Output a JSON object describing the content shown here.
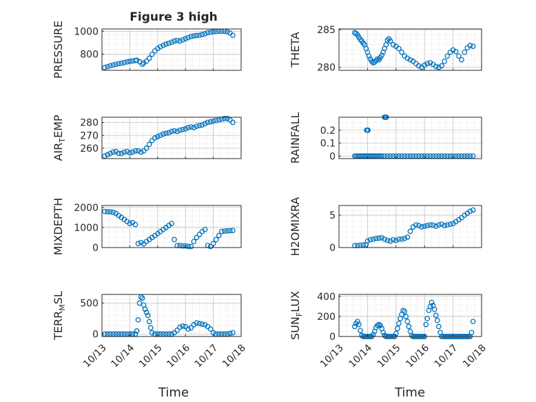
{
  "figure": {
    "title": "Figure 3 high",
    "xlabel_left": "Time",
    "xlabel_right": "Time",
    "x_tick_labels": [
      "10/13",
      "10/14",
      "10/15",
      "10/16",
      "10/17",
      "10/18"
    ],
    "marker_color": "#0072BD"
  },
  "chart_data": [
    {
      "type": "scatter",
      "title": "Figure 3 high",
      "ylabel": "PRESSURE",
      "xlim": [
        13,
        18
      ],
      "ylim": [
        660,
        1020
      ],
      "yticks": [
        800,
        1000
      ],
      "ytick_labels": [
        "800",
        "1000"
      ],
      "x": [
        13.1,
        13.2,
        13.3,
        13.4,
        13.5,
        13.6,
        13.7,
        13.8,
        13.9,
        14.0,
        14.1,
        14.2,
        14.25,
        14.35,
        14.45,
        14.5,
        14.6,
        14.7,
        14.8,
        14.9,
        15.0,
        15.1,
        15.2,
        15.3,
        15.4,
        15.5,
        15.6,
        15.7,
        15.8,
        15.9,
        16.0,
        16.1,
        16.2,
        16.3,
        16.4,
        16.5,
        16.6,
        16.7,
        16.8,
        16.9,
        17.0,
        17.1,
        17.2,
        17.3,
        17.4,
        17.5,
        17.6,
        17.7
      ],
      "y": [
        685,
        692,
        700,
        706,
        712,
        718,
        722,
        728,
        733,
        738,
        742,
        745,
        748,
        735,
        712,
        725,
        740,
        765,
        800,
        830,
        850,
        865,
        878,
        888,
        895,
        905,
        915,
        920,
        915,
        925,
        935,
        945,
        955,
        960,
        963,
        965,
        972,
        978,
        988,
        992,
        996,
        998,
        1000,
        1000,
        1000,
        995,
        985,
        965
      ]
    },
    {
      "type": "scatter",
      "ylabel": "THETA",
      "xlim": [
        13,
        18
      ],
      "ylim": [
        279.6,
        285.1
      ],
      "yticks": [
        280,
        285
      ],
      "ytick_labels": [
        "280",
        "285"
      ],
      "x": [
        13.55,
        13.6,
        13.65,
        13.7,
        13.75,
        13.8,
        13.85,
        13.9,
        13.95,
        14.0,
        14.05,
        14.1,
        14.15,
        14.2,
        14.25,
        14.3,
        14.35,
        14.4,
        14.45,
        14.5,
        14.55,
        14.6,
        14.65,
        14.7,
        14.75,
        14.8,
        14.9,
        15.0,
        15.1,
        15.2,
        15.3,
        15.4,
        15.5,
        15.6,
        15.7,
        15.8,
        15.9,
        16.0,
        16.1,
        16.2,
        16.3,
        16.4,
        16.5,
        16.6,
        16.7,
        16.8,
        16.9,
        17.0,
        17.1,
        17.2,
        17.3,
        17.4,
        17.5,
        17.6,
        17.7
      ],
      "y": [
        284.6,
        284.5,
        284.3,
        284.0,
        283.7,
        283.5,
        283.2,
        283.0,
        282.5,
        282.0,
        281.5,
        281.1,
        280.8,
        280.6,
        280.7,
        280.9,
        281.1,
        281.0,
        281.3,
        281.6,
        282.0,
        282.5,
        283.0,
        283.6,
        283.8,
        283.5,
        283.0,
        282.8,
        282.5,
        282.0,
        281.5,
        281.2,
        281.0,
        280.8,
        280.5,
        280.2,
        280.0,
        280.3,
        280.5,
        280.6,
        280.4,
        280.1,
        280.0,
        280.2,
        280.8,
        281.5,
        282.0,
        282.3,
        282.1,
        281.5,
        281.0,
        282.0,
        282.6,
        282.9,
        282.8
      ]
    },
    {
      "type": "scatter",
      "ylabel": "AIR_TEMP",
      "xlim": [
        13,
        18
      ],
      "ylim": [
        252,
        284
      ],
      "yticks": [
        260,
        270,
        280
      ],
      "ytick_labels": [
        "260",
        "270",
        "280"
      ],
      "x": [
        13.1,
        13.2,
        13.3,
        13.4,
        13.5,
        13.6,
        13.7,
        13.8,
        13.9,
        14.0,
        14.1,
        14.2,
        14.3,
        14.4,
        14.5,
        14.6,
        14.7,
        14.8,
        14.9,
        15.0,
        15.1,
        15.2,
        15.3,
        15.4,
        15.5,
        15.6,
        15.7,
        15.8,
        15.9,
        16.0,
        16.1,
        16.2,
        16.3,
        16.4,
        16.5,
        16.6,
        16.7,
        16.8,
        16.9,
        17.0,
        17.1,
        17.2,
        17.3,
        17.4,
        17.5,
        17.6,
        17.7
      ],
      "y": [
        254,
        255,
        256,
        257,
        257.5,
        256,
        256,
        257,
        257.5,
        256.5,
        257,
        258,
        258,
        257,
        258,
        260,
        263,
        266,
        268,
        269,
        270,
        271,
        271.5,
        272,
        273,
        273.5,
        273,
        274,
        274.5,
        275,
        276,
        276.5,
        276,
        277,
        277.5,
        278,
        279,
        280,
        280.5,
        281,
        281.5,
        282,
        282.5,
        283,
        283,
        282,
        280
      ]
    },
    {
      "type": "scatter",
      "ylabel": "RAINFALL",
      "xlim": [
        13,
        18
      ],
      "ylim": [
        -0.02,
        0.3
      ],
      "yticks": [
        0,
        0.1,
        0.2
      ],
      "ytick_labels": [
        "0",
        "0.1",
        "0.2"
      ],
      "x": [
        13.55,
        13.6,
        13.65,
        13.7,
        13.75,
        13.8,
        13.85,
        13.9,
        13.95,
        14.0,
        14.05,
        14.1,
        14.15,
        14.2,
        14.25,
        14.3,
        14.35,
        14.4,
        14.45,
        14.5,
        14.6,
        14.7,
        14.8,
        14.9,
        15.0,
        15.1,
        15.2,
        15.3,
        15.4,
        15.5,
        15.6,
        15.7,
        15.8,
        15.9,
        16.0,
        16.1,
        16.2,
        16.3,
        16.4,
        16.5,
        16.6,
        16.7,
        16.8,
        16.9,
        17.0,
        17.1,
        17.2,
        17.3,
        17.4,
        17.5,
        17.6,
        17.7,
        13.97,
        14.0,
        14.02,
        14.6,
        14.63,
        14.66
      ],
      "y": [
        0,
        0,
        0,
        0,
        0,
        0,
        0,
        0,
        0,
        0,
        0,
        0,
        0,
        0,
        0,
        0,
        0,
        0,
        0,
        0,
        0,
        0,
        0,
        0,
        0,
        0,
        0,
        0,
        0,
        0,
        0,
        0,
        0,
        0,
        0,
        0,
        0,
        0,
        0,
        0,
        0,
        0,
        0,
        0,
        0,
        0,
        0,
        0,
        0,
        0,
        0,
        0,
        0.2,
        0.2,
        0.2,
        0.3,
        0.3,
        0.3
      ]
    },
    {
      "type": "scatter",
      "ylabel": "MIXDEPTH",
      "xlim": [
        13,
        18
      ],
      "ylim": [
        0,
        2100
      ],
      "yticks": [
        0,
        1000,
        2000
      ],
      "ytick_labels": [
        "0",
        "1000",
        "2000"
      ],
      "x": [
        13.1,
        13.2,
        13.3,
        13.4,
        13.5,
        13.6,
        13.7,
        13.8,
        13.9,
        14.0,
        14.1,
        14.2,
        14.3,
        14.4,
        14.5,
        14.6,
        14.7,
        14.8,
        14.9,
        15.0,
        15.1,
        15.2,
        15.3,
        15.4,
        15.5,
        15.6,
        15.7,
        15.8,
        15.9,
        16.0,
        16.1,
        16.2,
        16.3,
        16.4,
        16.5,
        16.6,
        16.7,
        16.8,
        16.9,
        17.0,
        17.1,
        17.2,
        17.3,
        17.4,
        17.5,
        17.6,
        17.7
      ],
      "y": [
        1800,
        1790,
        1780,
        1760,
        1700,
        1600,
        1500,
        1400,
        1300,
        1200,
        1250,
        1150,
        200,
        250,
        180,
        300,
        400,
        500,
        600,
        700,
        800,
        900,
        1000,
        1100,
        1200,
        400,
        100,
        100,
        80,
        80,
        60,
        50,
        300,
        500,
        650,
        800,
        900,
        100,
        50,
        200,
        400,
        600,
        800,
        820,
        830,
        840,
        850
      ]
    },
    {
      "type": "scatter",
      "ylabel": "H2OMIXRA",
      "xlim": [
        13,
        18
      ],
      "ylim": [
        0,
        6.5
      ],
      "yticks": [
        0,
        5
      ],
      "ytick_labels": [
        "0",
        "5"
      ],
      "x": [
        13.55,
        13.65,
        13.75,
        13.85,
        13.95,
        14.0,
        14.1,
        14.2,
        14.3,
        14.4,
        14.5,
        14.6,
        14.7,
        14.8,
        14.9,
        15.0,
        15.1,
        15.2,
        15.3,
        15.4,
        15.5,
        15.6,
        15.7,
        15.8,
        15.9,
        16.0,
        16.1,
        16.2,
        16.3,
        16.4,
        16.5,
        16.6,
        16.7,
        16.8,
        16.9,
        17.0,
        17.1,
        17.2,
        17.3,
        17.4,
        17.5,
        17.6,
        17.7
      ],
      "y": [
        0.3,
        0.3,
        0.35,
        0.4,
        0.45,
        1.0,
        1.2,
        1.3,
        1.4,
        1.45,
        1.5,
        1.3,
        1.1,
        1.0,
        1.2,
        1.1,
        1.3,
        1.3,
        1.4,
        1.6,
        2.5,
        3.2,
        3.5,
        3.4,
        3.2,
        3.3,
        3.4,
        3.5,
        3.45,
        3.3,
        3.5,
        3.6,
        3.4,
        3.5,
        3.6,
        3.7,
        4.0,
        4.3,
        4.6,
        5.0,
        5.3,
        5.6,
        5.8
      ]
    },
    {
      "type": "scatter",
      "ylabel": "TERR_MSL",
      "xlim": [
        13,
        18
      ],
      "ylim": [
        -40,
        640
      ],
      "yticks": [
        0,
        500
      ],
      "ytick_labels": [
        "0",
        "500"
      ],
      "x": [
        13.1,
        13.2,
        13.3,
        13.4,
        13.5,
        13.6,
        13.7,
        13.8,
        13.9,
        14.0,
        14.1,
        14.2,
        14.25,
        14.3,
        14.35,
        14.4,
        14.45,
        14.5,
        14.55,
        14.6,
        14.65,
        14.7,
        14.75,
        14.8,
        14.9,
        15.0,
        15.1,
        15.2,
        15.3,
        15.4,
        15.5,
        15.6,
        15.7,
        15.8,
        15.9,
        16.0,
        16.1,
        16.2,
        16.3,
        16.4,
        16.5,
        16.6,
        16.7,
        16.8,
        16.9,
        17.0,
        17.1,
        17.2,
        17.3,
        17.4,
        17.5,
        17.6,
        17.7
      ],
      "y": [
        0,
        0,
        0,
        0,
        0,
        0,
        0,
        0,
        0,
        0,
        0,
        0,
        50,
        230,
        500,
        600,
        580,
        470,
        400,
        350,
        300,
        200,
        100,
        20,
        0,
        0,
        0,
        0,
        0,
        0,
        0,
        20,
        60,
        110,
        130,
        120,
        80,
        100,
        150,
        180,
        170,
        160,
        150,
        120,
        80,
        20,
        0,
        0,
        0,
        0,
        0,
        10,
        20
      ]
    },
    {
      "type": "scatter",
      "ylabel": "SUN_FLUX",
      "xlim": [
        13,
        18
      ],
      "ylim": [
        0,
        420
      ],
      "yticks": [
        0,
        200,
        400
      ],
      "ytick_labels": [
        "0",
        "200",
        "400"
      ],
      "x": [
        13.55,
        13.6,
        13.65,
        13.7,
        13.75,
        13.8,
        13.85,
        13.9,
        13.95,
        14.0,
        14.05,
        14.1,
        14.15,
        14.2,
        14.25,
        14.3,
        14.35,
        14.4,
        14.45,
        14.5,
        14.55,
        14.6,
        14.65,
        14.7,
        14.75,
        14.8,
        14.85,
        14.9,
        14.95,
        15.0,
        15.05,
        15.1,
        15.15,
        15.2,
        15.25,
        15.3,
        15.35,
        15.4,
        15.45,
        15.5,
        15.55,
        15.6,
        15.65,
        15.7,
        15.75,
        15.8,
        15.85,
        15.9,
        15.95,
        16.0,
        16.05,
        16.1,
        16.15,
        16.2,
        16.25,
        16.3,
        16.35,
        16.4,
        16.45,
        16.5,
        16.55,
        16.6,
        16.65,
        16.7,
        16.75,
        16.8,
        16.85,
        16.9,
        16.95,
        17.0,
        17.05,
        17.1,
        17.15,
        17.2,
        17.25,
        17.3,
        17.35,
        17.4,
        17.45,
        17.5,
        17.55,
        17.6,
        17.65,
        17.7
      ],
      "y": [
        100,
        130,
        150,
        120,
        60,
        10,
        0,
        0,
        0,
        0,
        0,
        0,
        0,
        20,
        50,
        90,
        110,
        120,
        110,
        80,
        40,
        10,
        0,
        0,
        0,
        0,
        0,
        0,
        0,
        30,
        80,
        130,
        180,
        220,
        260,
        250,
        200,
        150,
        100,
        50,
        10,
        0,
        0,
        0,
        0,
        0,
        0,
        0,
        0,
        0,
        120,
        180,
        260,
        300,
        340,
        310,
        270,
        210,
        160,
        100,
        40,
        0,
        0,
        0,
        0,
        0,
        0,
        0,
        0,
        0,
        0,
        0,
        0,
        0,
        0,
        0,
        0,
        0,
        0,
        0,
        0,
        0,
        40,
        150
      ]
    }
  ]
}
